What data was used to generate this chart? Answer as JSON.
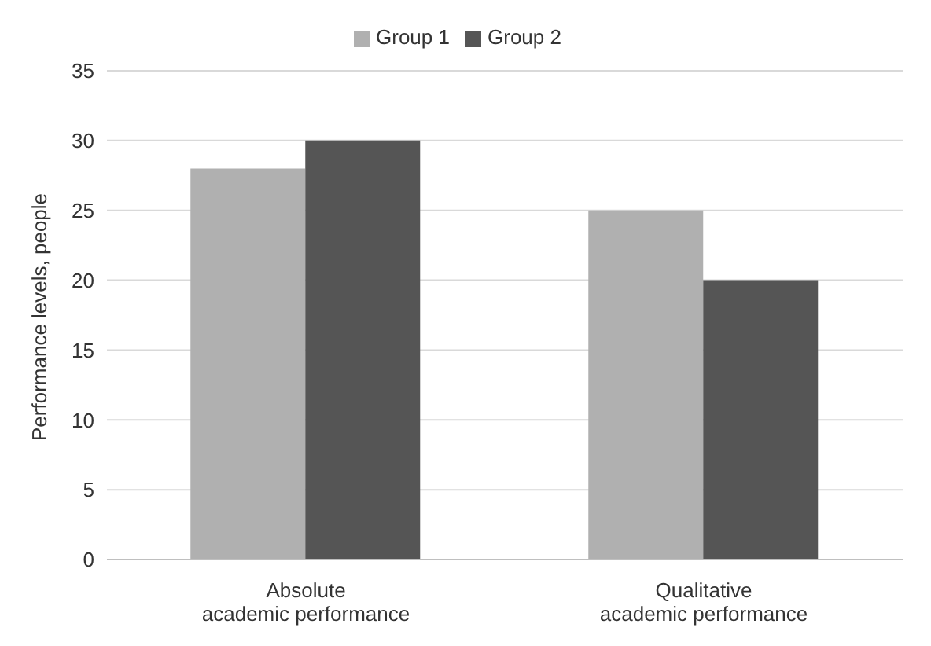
{
  "chart_data": {
    "type": "bar",
    "ylabel": "Performance levels, people",
    "categories": [
      "Absolute\nacademic performance",
      "Qualitative\nacademic performance"
    ],
    "series": [
      {
        "name": "Group 1",
        "color": "#b0b0b0",
        "values": [
          28,
          25
        ]
      },
      {
        "name": "Group 2",
        "color": "#555555",
        "values": [
          30,
          20
        ]
      }
    ],
    "ylim": [
      0,
      35
    ],
    "yticks": [
      0,
      5,
      10,
      15,
      20,
      25,
      30,
      35
    ],
    "grid": "y",
    "legend": "top"
  }
}
